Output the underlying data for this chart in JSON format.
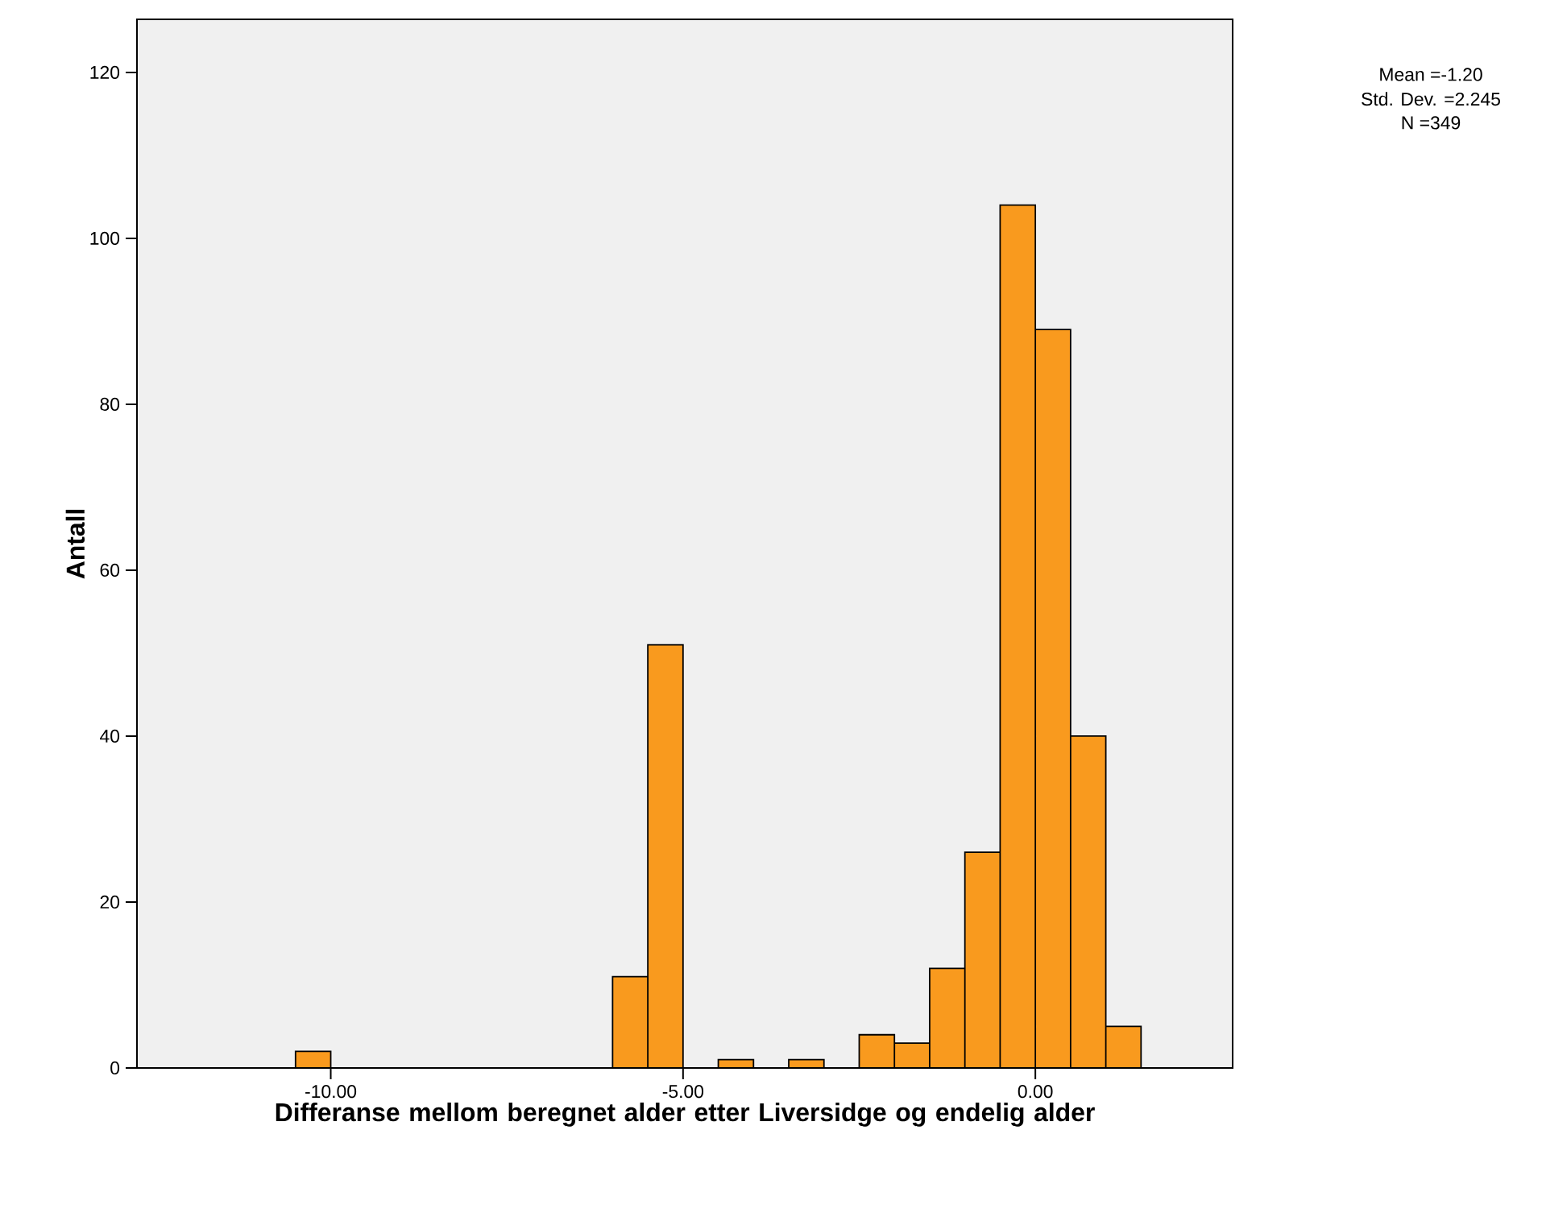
{
  "chart_data": {
    "type": "histogram",
    "xlabel": "Differanse mellom beregnet alder etter Liversidge og endelig alder",
    "ylabel": "Antall",
    "bins": [
      -10.5,
      -10,
      -9.5,
      -9,
      -8.5,
      -8,
      -7.5,
      -7,
      -6.5,
      -6,
      -5.5,
      -5,
      -4.5,
      -4,
      -3.5,
      -3,
      -2.5,
      -2,
      -1.5,
      -1,
      -0.5,
      0,
      0.5,
      1,
      1.5
    ],
    "values": [
      2,
      0,
      0,
      0,
      0,
      0,
      0,
      0,
      0,
      11,
      51,
      0,
      1,
      0,
      1,
      0,
      4,
      3,
      12,
      26,
      104,
      89,
      40,
      5
    ],
    "color": "#f99a1e",
    "xlim": [
      -12.75,
      2.8
    ],
    "xticks": [
      {
        "value": -10,
        "label": "-10.00"
      },
      {
        "value": -5,
        "label": "-5.00"
      },
      {
        "value": 0,
        "label": "0.00"
      }
    ],
    "ylim": [
      0,
      126.4
    ],
    "yticks": [
      0,
      20,
      40,
      60,
      80,
      100,
      120
    ],
    "annotations": [
      "Mean =-1.20",
      "Std. Dev. =2.245",
      "N =349"
    ]
  }
}
